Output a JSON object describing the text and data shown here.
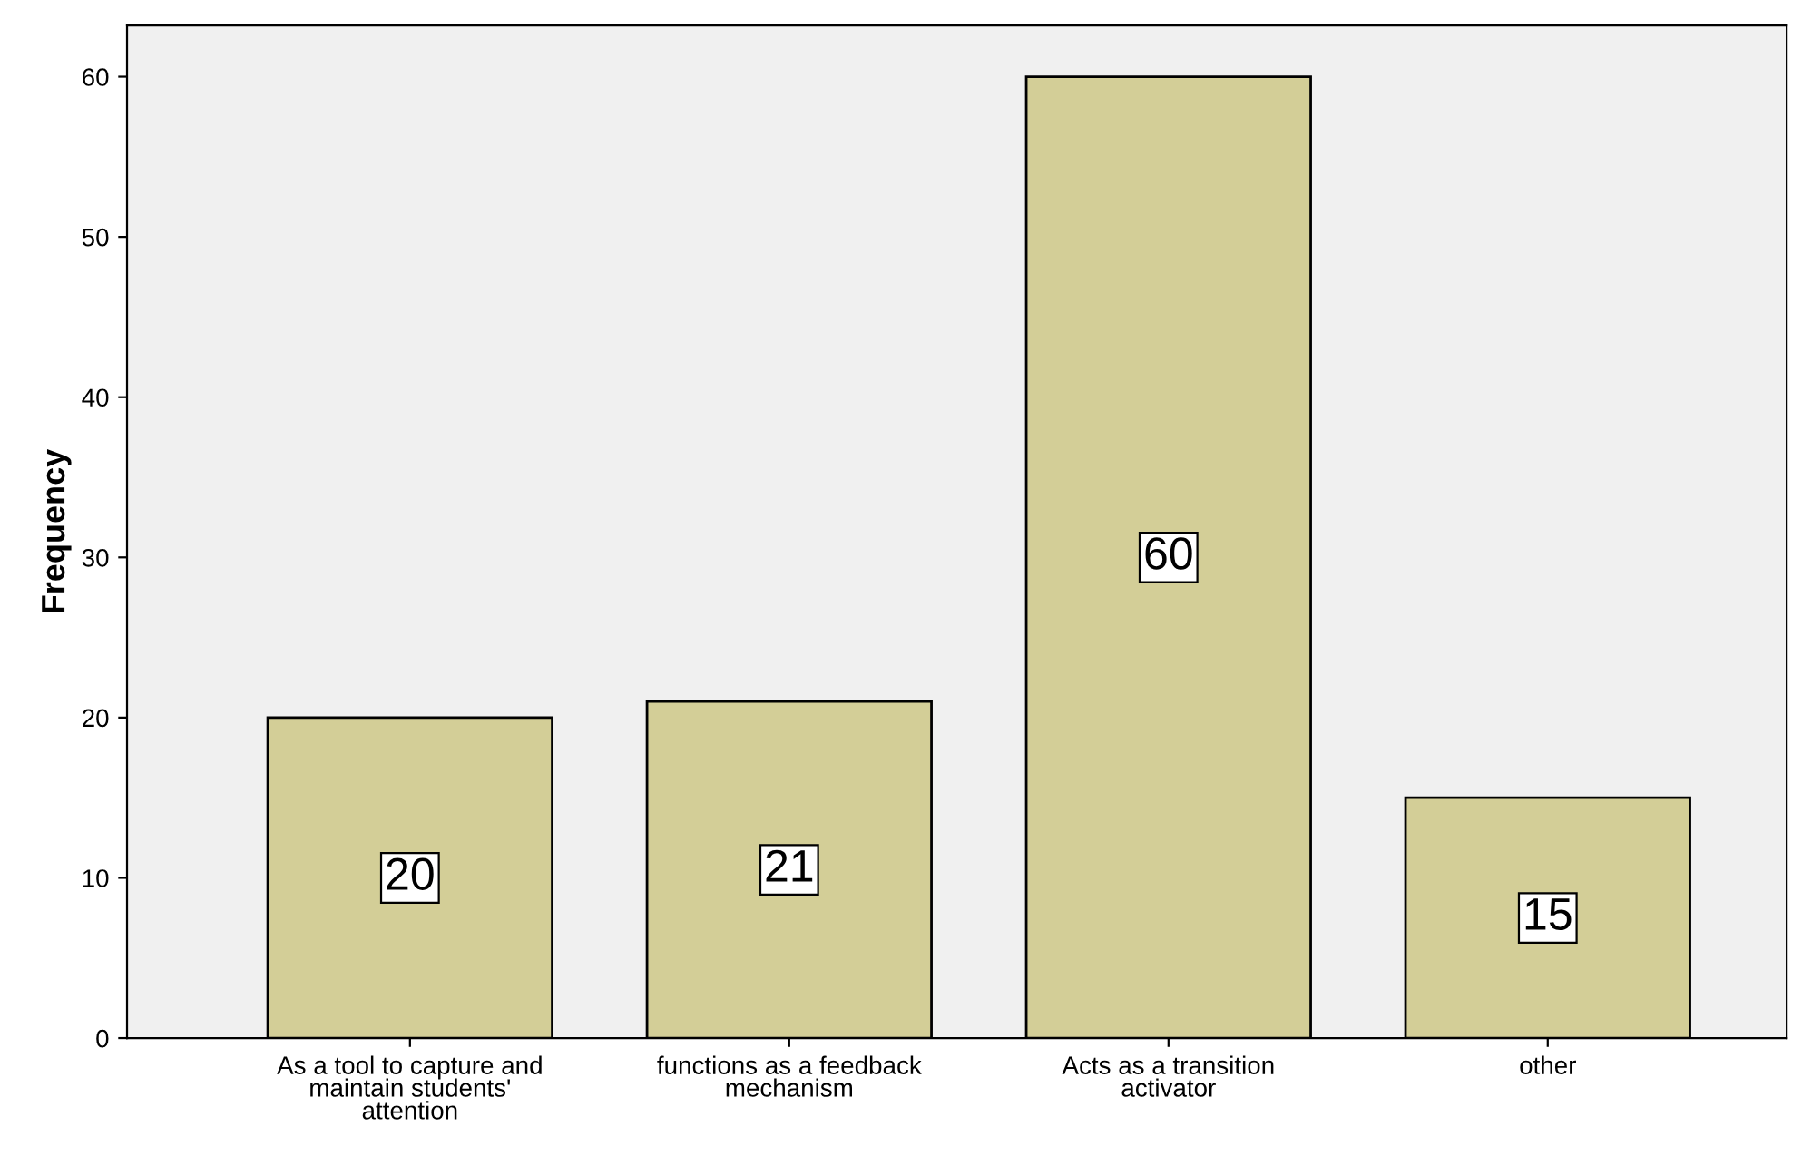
{
  "chart_data": {
    "type": "bar",
    "ylabel": "Frequency",
    "categories": [
      "As a tool to capture and\nmaintain students'\nattention",
      "functions as a feedback\nmechanism",
      "Acts as a transition\nactivator",
      "other"
    ],
    "values": [
      20,
      21,
      60,
      15
    ],
    "color": "#d3ce97",
    "ylim": [
      0,
      63.2
    ],
    "yticks": [
      0,
      10,
      20,
      30,
      40,
      50,
      60
    ],
    "data_labels": true,
    "grid": false,
    "legend": false
  }
}
